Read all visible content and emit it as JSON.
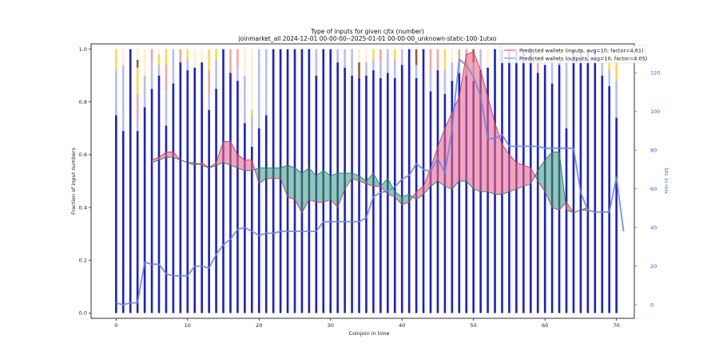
{
  "chart_data": {
    "type": "bar",
    "title": "Type of inputs for given cjtx (number)",
    "subtitle": "joinmarket_all 2024-12-01 00-00-00--2025-01-01 00-00-00_unknown-static-100-1utxo",
    "xlabel": "Coinjoin in time",
    "ylabel": "Fraction of input numbers",
    "y2label": "btc in mix",
    "xlim": [
      -3.5,
      72.5
    ],
    "ylim": [
      -0.02,
      1.02
    ],
    "y2lim": [
      -7,
      135
    ],
    "x_ticks": [
      0,
      10,
      20,
      30,
      40,
      50,
      60,
      70
    ],
    "y_ticks": [
      "0.0",
      "0.2",
      "0.4",
      "0.6",
      "0.8",
      "1.0"
    ],
    "y_tick_values": [
      0,
      0.2,
      0.4,
      0.6,
      0.8,
      1.0
    ],
    "y2_ticks": [
      0,
      20,
      40,
      60,
      80,
      100,
      120
    ],
    "grid": false,
    "legend_position": "top-right",
    "legend": [
      {
        "label": "Predicted wallets (inputs, avg=10, factor=4.61)",
        "color": "#e8607a"
      },
      {
        "label": "Predicted wallets (outputs, avg=10, factor=4.05)",
        "color": "#8a8fd6"
      }
    ],
    "stack_colors": [
      "#1a1fd0",
      "#b9bdf0",
      "#f3a4a4",
      "#ffd84a",
      "#9a5a3a",
      "#ffefcf"
    ],
    "bars": [
      [
        0.75,
        0.17,
        0,
        0.08,
        0,
        0
      ],
      [
        0.69,
        0.25,
        0,
        0,
        0,
        0.06
      ],
      [
        1.0,
        0,
        0,
        0,
        0,
        0
      ],
      [
        0.69,
        0.04,
        0.1,
        0.1,
        0.03,
        0.04
      ],
      [
        0.78,
        0.12,
        0,
        0,
        0,
        0.1
      ],
      [
        0.85,
        0.1,
        0.05,
        0,
        0,
        0
      ],
      [
        0.9,
        0.04,
        0,
        0.04,
        0,
        0.02
      ],
      [
        0.71,
        0.13,
        0.1,
        0.06,
        0,
        0
      ],
      [
        0.87,
        0.13,
        0,
        0,
        0,
        0
      ],
      [
        0.95,
        0,
        0.05,
        0,
        0,
        0
      ],
      [
        0.92,
        0.04,
        0,
        0.04,
        0,
        0
      ],
      [
        0.93,
        0,
        0,
        0,
        0,
        0.07
      ],
      [
        0.95,
        0,
        0,
        0,
        0,
        0.05
      ],
      [
        0.77,
        0.06,
        0.09,
        0.08,
        0,
        0
      ],
      [
        0.85,
        0.11,
        0,
        0.04,
        0,
        0
      ],
      [
        1.0,
        0,
        0,
        0,
        0,
        0
      ],
      [
        0.91,
        0,
        0.09,
        0,
        0,
        0
      ],
      [
        0.88,
        0.05,
        0.07,
        0,
        0,
        0
      ],
      [
        0.72,
        0.18,
        0,
        0,
        0,
        0.1
      ],
      [
        0.63,
        0.12,
        0,
        0.02,
        0,
        0.23
      ],
      [
        0.7,
        0.3,
        0,
        0,
        0,
        0
      ],
      [
        0.75,
        0.25,
        0,
        0,
        0,
        0
      ],
      [
        1.0,
        0,
        0,
        0,
        0,
        0
      ],
      [
        1.0,
        0,
        0,
        0,
        0,
        0
      ],
      [
        1.0,
        0,
        0,
        0,
        0,
        0
      ],
      [
        1.0,
        0,
        0,
        0,
        0,
        0
      ],
      [
        1.0,
        0,
        0,
        0,
        0,
        0
      ],
      [
        1.0,
        0,
        0,
        0,
        0,
        0
      ],
      [
        0.9,
        0.1,
        0,
        0,
        0,
        0
      ],
      [
        1.0,
        0,
        0,
        0,
        0,
        0
      ],
      [
        1.0,
        0,
        0,
        0,
        0,
        0
      ],
      [
        0.95,
        0.05,
        0,
        0,
        0,
        0
      ],
      [
        0.93,
        0.07,
        0,
        0,
        0,
        0
      ],
      [
        0.9,
        0.1,
        0,
        0,
        0,
        0
      ],
      [
        0.89,
        0,
        0,
        0,
        0.06,
        0.05
      ],
      [
        0.9,
        0.05,
        0,
        0,
        0,
        0.05
      ],
      [
        0.92,
        0.04,
        0,
        0.04,
        0,
        0
      ],
      [
        0.89,
        0.06,
        0.05,
        0,
        0,
        0
      ],
      [
        0.91,
        0.09,
        0,
        0,
        0,
        0
      ],
      [
        0.89,
        0.07,
        0,
        0.04,
        0,
        0
      ],
      [
        0.94,
        0.06,
        0,
        0,
        0,
        0
      ],
      [
        1.0,
        0,
        0,
        0,
        0,
        0
      ],
      [
        0.89,
        0.05,
        0,
        0,
        0.06,
        0
      ],
      [
        1.0,
        0,
        0,
        0,
        0,
        0
      ],
      [
        0.84,
        0.08,
        0.08,
        0,
        0,
        0
      ],
      [
        0.92,
        0,
        0.08,
        0,
        0,
        0
      ],
      [
        0.83,
        0.09,
        0,
        0.08,
        0,
        0
      ],
      [
        0.88,
        0.07,
        0,
        0,
        0,
        0.05
      ],
      [
        0.91,
        0.04,
        0.05,
        0,
        0,
        0
      ],
      [
        0.9,
        0,
        0.1,
        0,
        0,
        0
      ],
      [
        0.88,
        0.07,
        0,
        0,
        0.05,
        0
      ],
      [
        0.92,
        0.08,
        0,
        0,
        0,
        0
      ],
      [
        0.93,
        0,
        0,
        0,
        0,
        0.07
      ],
      [
        1.0,
        0,
        0,
        0,
        0,
        0
      ],
      [
        1.0,
        0,
        0,
        0,
        0,
        0
      ],
      [
        1.0,
        0,
        0,
        0,
        0,
        0
      ],
      [
        1.0,
        0,
        0,
        0,
        0,
        0
      ],
      [
        1.0,
        0,
        0,
        0,
        0,
        0
      ],
      [
        1.0,
        0,
        0,
        0,
        0,
        0
      ],
      [
        0.91,
        0,
        0.06,
        0.03,
        0,
        0
      ],
      [
        0.94,
        0,
        0,
        0,
        0,
        0.06
      ],
      [
        0.87,
        0.09,
        0,
        0.04,
        0,
        0
      ],
      [
        0.94,
        0.06,
        0,
        0,
        0,
        0
      ],
      [
        0.7,
        0.27,
        0,
        0.03,
        0,
        0
      ],
      [
        1.0,
        0,
        0,
        0,
        0,
        0
      ],
      [
        1.0,
        0,
        0,
        0,
        0,
        0
      ],
      [
        1.0,
        0,
        0,
        0,
        0,
        0
      ],
      [
        1.0,
        0,
        0,
        0,
        0,
        0
      ],
      [
        0.9,
        0.1,
        0,
        0,
        0,
        0
      ],
      [
        0.86,
        0.06,
        0,
        0.05,
        0,
        0.03
      ],
      [
        0.74,
        0.14,
        0,
        0.1,
        0,
        0.02
      ]
    ],
    "series": [
      {
        "values": [
          [
            5,
            0.58
          ],
          [
            6,
            0.59
          ],
          [
            7,
            0.61
          ],
          [
            8,
            0.61
          ],
          [
            9,
            0.58
          ],
          [
            10,
            0.57
          ],
          [
            11,
            0.56
          ],
          [
            12,
            0.57
          ],
          [
            13,
            0.55
          ],
          [
            14,
            0.57
          ],
          [
            15,
            0.65
          ],
          [
            16,
            0.65
          ],
          [
            17,
            0.6
          ],
          [
            18,
            0.58
          ],
          [
            19,
            0.58
          ],
          [
            20,
            0.49
          ],
          [
            21,
            0.51
          ],
          [
            22,
            0.51
          ],
          [
            23,
            0.51
          ],
          [
            24,
            0.44
          ],
          [
            25,
            0.43
          ],
          [
            26,
            0.38
          ],
          [
            27,
            0.43
          ],
          [
            28,
            0.42
          ],
          [
            29,
            0.42
          ],
          [
            30,
            0.43
          ],
          [
            31,
            0.4
          ],
          [
            32,
            0.47
          ],
          [
            33,
            0.51
          ],
          [
            34,
            0.5
          ],
          [
            35,
            0.49
          ],
          [
            36,
            0.48
          ],
          [
            37,
            0.48
          ],
          [
            38,
            0.45
          ],
          [
            39,
            0.44
          ],
          [
            40,
            0.41
          ],
          [
            41,
            0.42
          ],
          [
            42,
            0.46
          ],
          [
            43,
            0.48
          ],
          [
            44,
            0.55
          ],
          [
            45,
            0.63
          ],
          [
            46,
            0.7
          ],
          [
            47,
            0.76
          ],
          [
            48,
            0.82
          ],
          [
            49,
            0.98
          ],
          [
            50,
            0.99
          ],
          [
            51,
            0.92
          ],
          [
            52,
            0.82
          ],
          [
            53,
            0.72
          ],
          [
            54,
            0.64
          ],
          [
            55,
            0.6
          ],
          [
            56,
            0.57
          ],
          [
            57,
            0.56
          ],
          [
            58,
            0.55
          ],
          [
            59,
            0.5
          ],
          [
            60,
            0.46
          ],
          [
            61,
            0.4
          ],
          [
            62,
            0.39
          ],
          [
            63,
            0.42
          ],
          [
            64,
            0.38
          ],
          [
            65,
            0.39
          ],
          [
            66,
            0.39
          ]
        ]
      },
      {
        "values": [
          [
            5,
            0.57
          ],
          [
            6,
            0.58
          ],
          [
            7,
            0.59
          ],
          [
            8,
            0.59
          ],
          [
            9,
            0.58
          ],
          [
            10,
            0.57
          ],
          [
            11,
            0.57
          ],
          [
            12,
            0.56
          ],
          [
            13,
            0.55
          ],
          [
            14,
            0.56
          ],
          [
            15,
            0.57
          ],
          [
            16,
            0.56
          ],
          [
            17,
            0.55
          ],
          [
            18,
            0.54
          ],
          [
            19,
            0.54
          ],
          [
            20,
            0.55
          ],
          [
            21,
            0.55
          ],
          [
            22,
            0.55
          ],
          [
            23,
            0.55
          ],
          [
            24,
            0.56
          ],
          [
            25,
            0.55
          ],
          [
            26,
            0.53
          ],
          [
            27,
            0.55
          ],
          [
            28,
            0.52
          ],
          [
            29,
            0.54
          ],
          [
            30,
            0.52
          ],
          [
            31,
            0.53
          ],
          [
            32,
            0.53
          ],
          [
            33,
            0.53
          ],
          [
            34,
            0.52
          ],
          [
            35,
            0.5
          ],
          [
            36,
            0.53
          ],
          [
            37,
            0.48
          ],
          [
            38,
            0.51
          ],
          [
            39,
            0.46
          ],
          [
            40,
            0.44
          ],
          [
            41,
            0.45
          ],
          [
            42,
            0.43
          ],
          [
            43,
            0.45
          ],
          [
            44,
            0.48
          ],
          [
            45,
            0.5
          ],
          [
            46,
            0.48
          ],
          [
            47,
            0.47
          ],
          [
            48,
            0.5
          ],
          [
            49,
            0.5
          ],
          [
            50,
            0.47
          ],
          [
            51,
            0.46
          ],
          [
            52,
            0.46
          ],
          [
            53,
            0.45
          ],
          [
            54,
            0.45
          ],
          [
            55,
            0.46
          ],
          [
            56,
            0.47
          ],
          [
            57,
            0.48
          ],
          [
            58,
            0.49
          ],
          [
            59,
            0.54
          ],
          [
            60,
            0.58
          ],
          [
            61,
            0.61
          ],
          [
            62,
            0.61
          ],
          [
            63,
            0.39
          ],
          [
            64,
            0.38
          ],
          [
            65,
            0.39
          ],
          [
            66,
            0.4
          ]
        ]
      },
      {
        "axis": "right",
        "values": [
          [
            0,
            1
          ],
          [
            1,
            0
          ],
          [
            2,
            1
          ],
          [
            3,
            1
          ],
          [
            4,
            22
          ],
          [
            5,
            21
          ],
          [
            6,
            21
          ],
          [
            7,
            16
          ],
          [
            8,
            15
          ],
          [
            9,
            15
          ],
          [
            10,
            15
          ],
          [
            11,
            20
          ],
          [
            12,
            20
          ],
          [
            13,
            19
          ],
          [
            14,
            26
          ],
          [
            15,
            31
          ],
          [
            16,
            34
          ],
          [
            17,
            39
          ],
          [
            18,
            40
          ],
          [
            19,
            38
          ],
          [
            20,
            36
          ],
          [
            21,
            37
          ],
          [
            22,
            37
          ],
          [
            23,
            38
          ],
          [
            24,
            38
          ],
          [
            25,
            38
          ],
          [
            26,
            38
          ],
          [
            27,
            38
          ],
          [
            28,
            38
          ],
          [
            29,
            43
          ],
          [
            30,
            43
          ],
          [
            31,
            43
          ],
          [
            32,
            43
          ],
          [
            33,
            43
          ],
          [
            34,
            43
          ],
          [
            35,
            45
          ],
          [
            36,
            56
          ],
          [
            37,
            58
          ],
          [
            38,
            59
          ],
          [
            39,
            61
          ],
          [
            40,
            65
          ],
          [
            41,
            67
          ],
          [
            42,
            73
          ],
          [
            43,
            70
          ],
          [
            44,
            69
          ],
          [
            45,
            76
          ],
          [
            46,
            68
          ],
          [
            47,
            91
          ],
          [
            48,
            127
          ],
          [
            49,
            124
          ],
          [
            50,
            118
          ],
          [
            51,
            108
          ],
          [
            52,
            86
          ],
          [
            53,
            86
          ],
          [
            54,
            88
          ],
          [
            55,
            82
          ],
          [
            56,
            82
          ],
          [
            57,
            82
          ],
          [
            58,
            82
          ],
          [
            59,
            82
          ],
          [
            60,
            81
          ],
          [
            61,
            81
          ],
          [
            62,
            81
          ],
          [
            63,
            81
          ],
          [
            64,
            81
          ],
          [
            65,
            58
          ],
          [
            66,
            49
          ],
          [
            67,
            48
          ],
          [
            68,
            48
          ],
          [
            69,
            48
          ],
          [
            70,
            66
          ],
          [
            71,
            38
          ]
        ]
      }
    ]
  }
}
